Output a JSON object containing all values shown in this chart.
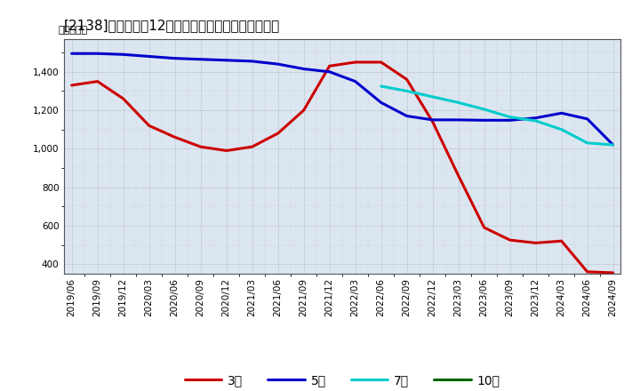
{
  "title": "[2138]　経常利益12か月移動合計の標準偏差の推移",
  "ylabel": "（百万円）",
  "ylim": [
    350,
    1570
  ],
  "yticks": [
    400,
    600,
    800,
    1000,
    1200,
    1400
  ],
  "background_color": "#ffffff",
  "plot_background": "#dce6f1",
  "grid_color_major": "#aaaaaa",
  "grid_color_minor": "#cccccc",
  "legend_labels": [
    "3年",
    "5年",
    "7年",
    "10年"
  ],
  "x_labels": [
    "2019/06",
    "2019/09",
    "2019/12",
    "2020/03",
    "2020/06",
    "2020/09",
    "2020/12",
    "2021/03",
    "2021/06",
    "2021/09",
    "2021/12",
    "2022/03",
    "2022/06",
    "2022/09",
    "2022/12",
    "2023/03",
    "2023/06",
    "2023/09",
    "2023/12",
    "2024/03",
    "2024/06",
    "2024/09"
  ],
  "series_3y": {
    "y": [
      1330,
      1350,
      1260,
      1120,
      1060,
      1010,
      990,
      1010,
      1080,
      1200,
      1430,
      1450,
      1450,
      1360,
      1140,
      860,
      590,
      525,
      510,
      520,
      360,
      355
    ],
    "color": "#cc0000",
    "lw": 2.2
  },
  "series_5y": {
    "y": [
      1495,
      1495,
      1490,
      1480,
      1470,
      1465,
      1460,
      1455,
      1440,
      1415,
      1400,
      1350,
      1240,
      1170,
      1150,
      1150,
      1148,
      1148,
      1160,
      1185,
      1155,
      1020
    ],
    "color": "#0000cc",
    "lw": 2.2
  },
  "series_7y": {
    "y": [
      null,
      null,
      null,
      null,
      null,
      null,
      null,
      null,
      null,
      null,
      null,
      null,
      1325,
      1300,
      1270,
      1240,
      1205,
      1165,
      1145,
      1100,
      1030,
      1020
    ],
    "color": "#00cccc",
    "lw": 2.2
  },
  "series_10y": {
    "y": [
      null,
      null,
      null,
      null,
      null,
      null,
      null,
      null,
      null,
      null,
      null,
      null,
      null,
      null,
      null,
      null,
      null,
      null,
      null,
      null,
      null,
      null
    ],
    "color": "#006600",
    "lw": 2.2
  }
}
